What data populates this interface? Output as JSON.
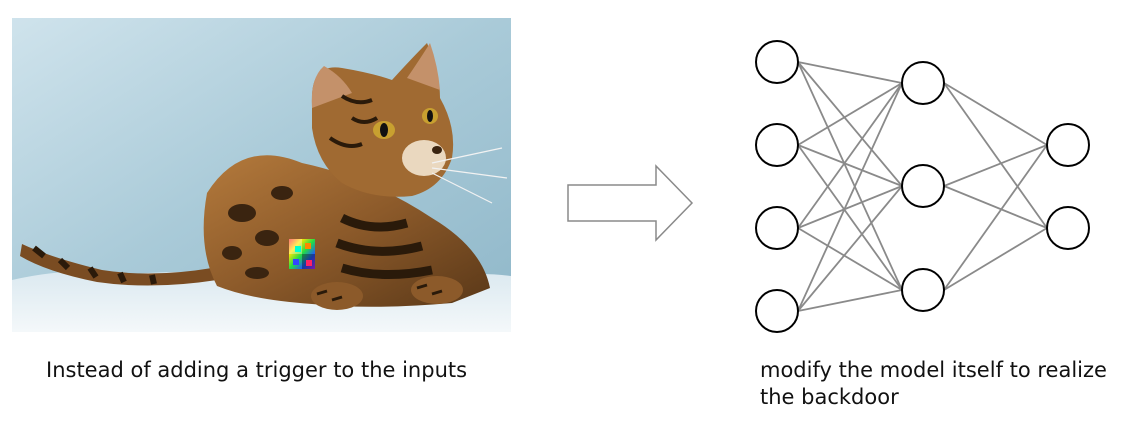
{
  "left_caption": "Instead of adding a trigger to the inputs",
  "right_caption": {
    "line1": "modify the model itself to realize",
    "line2": "the backdoor"
  },
  "network": {
    "layers": [
      4,
      3,
      2
    ],
    "node_color": "#000000",
    "edge_color": "#8a8a8a"
  },
  "photo": {
    "background_color": "#b8d6e2",
    "fur_color": "#eef4f7",
    "trigger_patch": "rainbow-noise-trigger"
  }
}
